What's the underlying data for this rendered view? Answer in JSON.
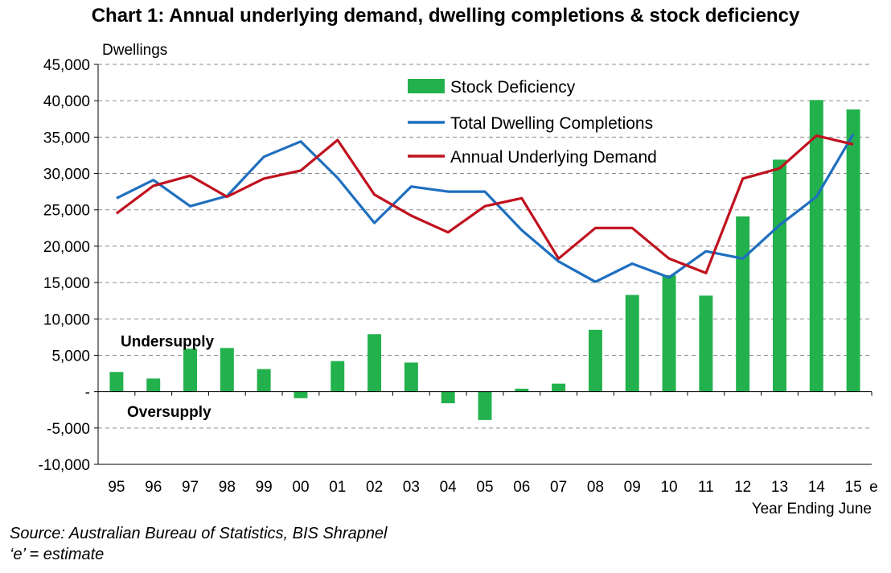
{
  "chart_data": {
    "type": "bar",
    "title": "Chart 1: Annual underlying demand, dwelling completions & stock deficiency",
    "ylabel": "Dwellings",
    "xlabel": "Year Ending June",
    "categories": [
      "95",
      "96",
      "97",
      "98",
      "99",
      "00",
      "01",
      "02",
      "03",
      "04",
      "05",
      "06",
      "07",
      "08",
      "09",
      "10",
      "11",
      "12",
      "13",
      "14",
      "15"
    ],
    "estimate_suffix": "e",
    "ylim": [
      -10000,
      45000
    ],
    "yticks": [
      -10000,
      -5000,
      0,
      5000,
      10000,
      15000,
      20000,
      25000,
      30000,
      35000,
      40000,
      45000
    ],
    "ytick_labels": [
      "-10,000",
      "-5,000",
      "-",
      "5,000",
      "10,000",
      "15,000",
      "20,000",
      "25,000",
      "30,000",
      "35,000",
      "40,000",
      "45,000"
    ],
    "grid": true,
    "legend_position": "top-center",
    "series": [
      {
        "name": "Stock Deficiency",
        "kind": "bar",
        "color": "#22b14c",
        "values": [
          2700,
          1800,
          5900,
          6000,
          3100,
          -900,
          4200,
          7900,
          4000,
          -1600,
          -3900,
          400,
          1100,
          8500,
          13300,
          16000,
          13200,
          24100,
          31900,
          40100,
          38800
        ]
      },
      {
        "name": "Total Dwelling Completions",
        "kind": "line",
        "color": "#1f6fbf",
        "values": [
          26600,
          29100,
          25500,
          26900,
          32300,
          34400,
          29400,
          23200,
          28200,
          27500,
          27500,
          22200,
          17900,
          15100,
          17600,
          15700,
          19300,
          18300,
          22900,
          26800,
          35400
        ]
      },
      {
        "name": "Annual Underlying Demand",
        "kind": "line",
        "color": "#c0111f",
        "values": [
          24500,
          28300,
          29700,
          26800,
          29300,
          30400,
          34600,
          27100,
          24200,
          21900,
          25500,
          26600,
          18300,
          22500,
          22500,
          18300,
          16300,
          29300,
          30700,
          35200,
          34000
        ]
      }
    ],
    "annotations": [
      "Undersupply",
      "Oversupply"
    ]
  },
  "source_lines": [
    "Source: Australian Bureau of Statistics, BIS Shrapnel",
    "‘e’ = estimate"
  ]
}
